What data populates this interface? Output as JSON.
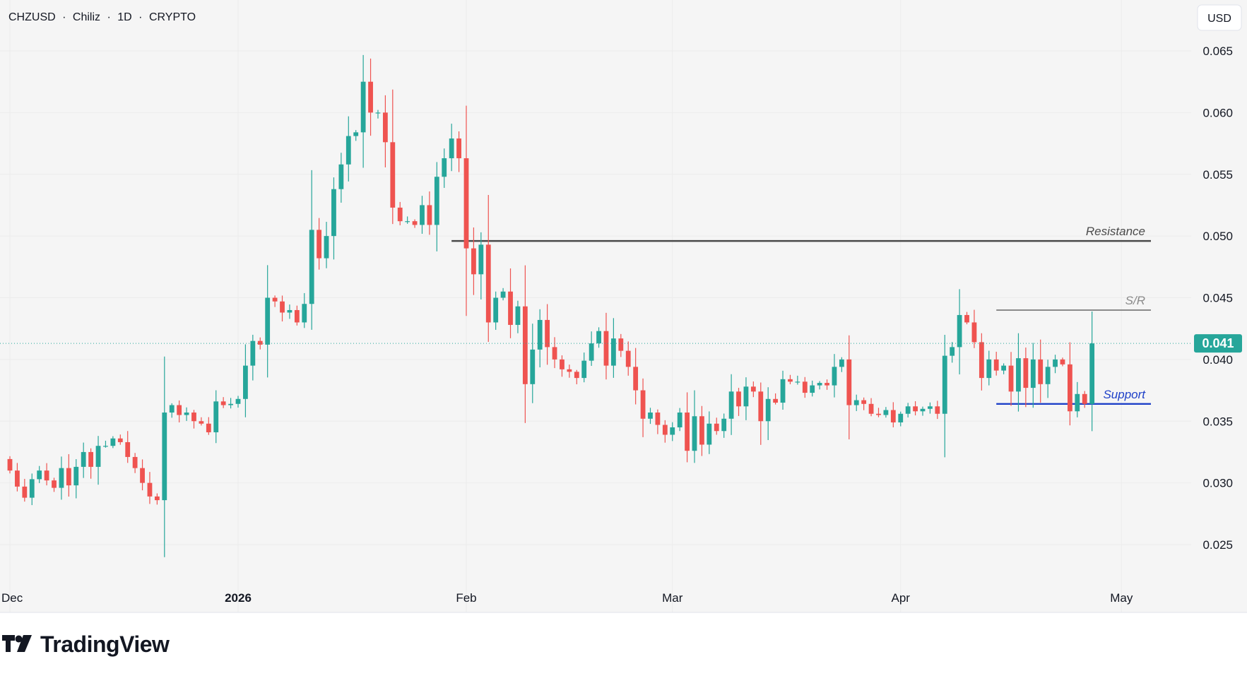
{
  "header": {
    "symbol": "CHZUSD",
    "name": "Chiliz",
    "interval": "1D",
    "exchange": "CRYPTO",
    "separator": "·",
    "currency": "USD"
  },
  "brand": {
    "name": "TradingView"
  },
  "colors": {
    "up": "#26a69a",
    "down": "#ef5350",
    "resistance": "#4a4a4a",
    "sr": "#8a8a8a",
    "support": "#1e40c8",
    "price_badge": "#26a69a",
    "grid": "#ececec",
    "background": "#f5f5f5"
  },
  "chart_data": {
    "type": "candlestick",
    "title": "CHZUSD · Chiliz · 1D · CRYPTO",
    "ylim": [
      0.0215,
      0.0675
    ],
    "x_start": "2025-12-01",
    "x_end": "2026-05-07",
    "y_ticks": [
      "0.065",
      "0.060",
      "0.055",
      "0.050",
      "0.045",
      "0.040",
      "0.035",
      "0.030",
      "0.025"
    ],
    "x_ticks": [
      {
        "label": "Dec",
        "date": "2025-12-01"
      },
      {
        "label": "2026",
        "date": "2026-01-01"
      },
      {
        "label": "Feb",
        "date": "2026-02-01"
      },
      {
        "label": "Mar",
        "date": "2026-03-01"
      },
      {
        "label": "Apr",
        "date": "2026-04-01"
      },
      {
        "label": "May",
        "date": "2026-05-01"
      }
    ],
    "last_price": {
      "label": "0.041",
      "value": 0.0413
    },
    "levels": [
      {
        "name": "Resistance",
        "label": "Resistance",
        "value": 0.0496,
        "from": "2026-01-30",
        "to": "2026-05-05",
        "color_key": "resistance"
      },
      {
        "name": "S/R",
        "label": "S/R",
        "value": 0.044,
        "from": "2026-04-14",
        "to": "2026-05-05",
        "color_key": "sr"
      },
      {
        "name": "Support",
        "label": "Support",
        "value": 0.0364,
        "from": "2026-04-14",
        "to": "2026-05-05",
        "color_key": "support"
      }
    ],
    "closes": [
      0.031,
      0.0297,
      0.0288,
      0.0303,
      0.031,
      0.0302,
      0.0296,
      0.0312,
      0.0298,
      0.0313,
      0.0325,
      0.0313,
      0.033,
      0.033,
      0.0336,
      0.0333,
      0.0321,
      0.0312,
      0.03,
      0.0289,
      0.0286,
      0.0357,
      0.0363,
      0.0355,
      0.0357,
      0.035,
      0.0348,
      0.0341,
      0.0366,
      0.0363,
      0.0364,
      0.0368,
      0.0395,
      0.0415,
      0.0412,
      0.045,
      0.0447,
      0.0438,
      0.044,
      0.043,
      0.0445,
      0.0505,
      0.0482,
      0.05,
      0.0538,
      0.0558,
      0.0581,
      0.0584,
      0.0625,
      0.06,
      0.06,
      0.0576,
      0.0523,
      0.0512,
      0.0512,
      0.0509,
      0.0525,
      0.0509,
      0.0548,
      0.0563,
      0.0579,
      0.0563,
      0.049,
      0.0469,
      0.0493,
      0.043,
      0.045,
      0.0455,
      0.0428,
      0.0443,
      0.038,
      0.0408,
      0.0432,
      0.041,
      0.04,
      0.0392,
      0.039,
      0.0385,
      0.0399,
      0.0413,
      0.0423,
      0.0395,
      0.0417,
      0.0407,
      0.0394,
      0.0375,
      0.0352,
      0.0357,
      0.0347,
      0.0339,
      0.0345,
      0.0357,
      0.0326,
      0.0354,
      0.0331,
      0.0348,
      0.0342,
      0.0352,
      0.0374,
      0.0362,
      0.0378,
      0.0374,
      0.035,
      0.0368,
      0.0365,
      0.0384,
      0.0382,
      0.0382,
      0.0373,
      0.0379,
      0.0381,
      0.0379,
      0.0394,
      0.04,
      0.0363,
      0.0367,
      0.0364,
      0.0356,
      0.0355,
      0.0359,
      0.0349,
      0.0356,
      0.0362,
      0.0358,
      0.036,
      0.0362,
      0.0356,
      0.0403,
      0.041,
      0.0436,
      0.043,
      0.0414,
      0.0385,
      0.04,
      0.0391,
      0.0395,
      0.0374,
      0.0401,
      0.0377,
      0.04,
      0.038,
      0.0394,
      0.04,
      0.0396,
      0.0358,
      0.0372,
      0.0364,
      0.0413
    ]
  }
}
